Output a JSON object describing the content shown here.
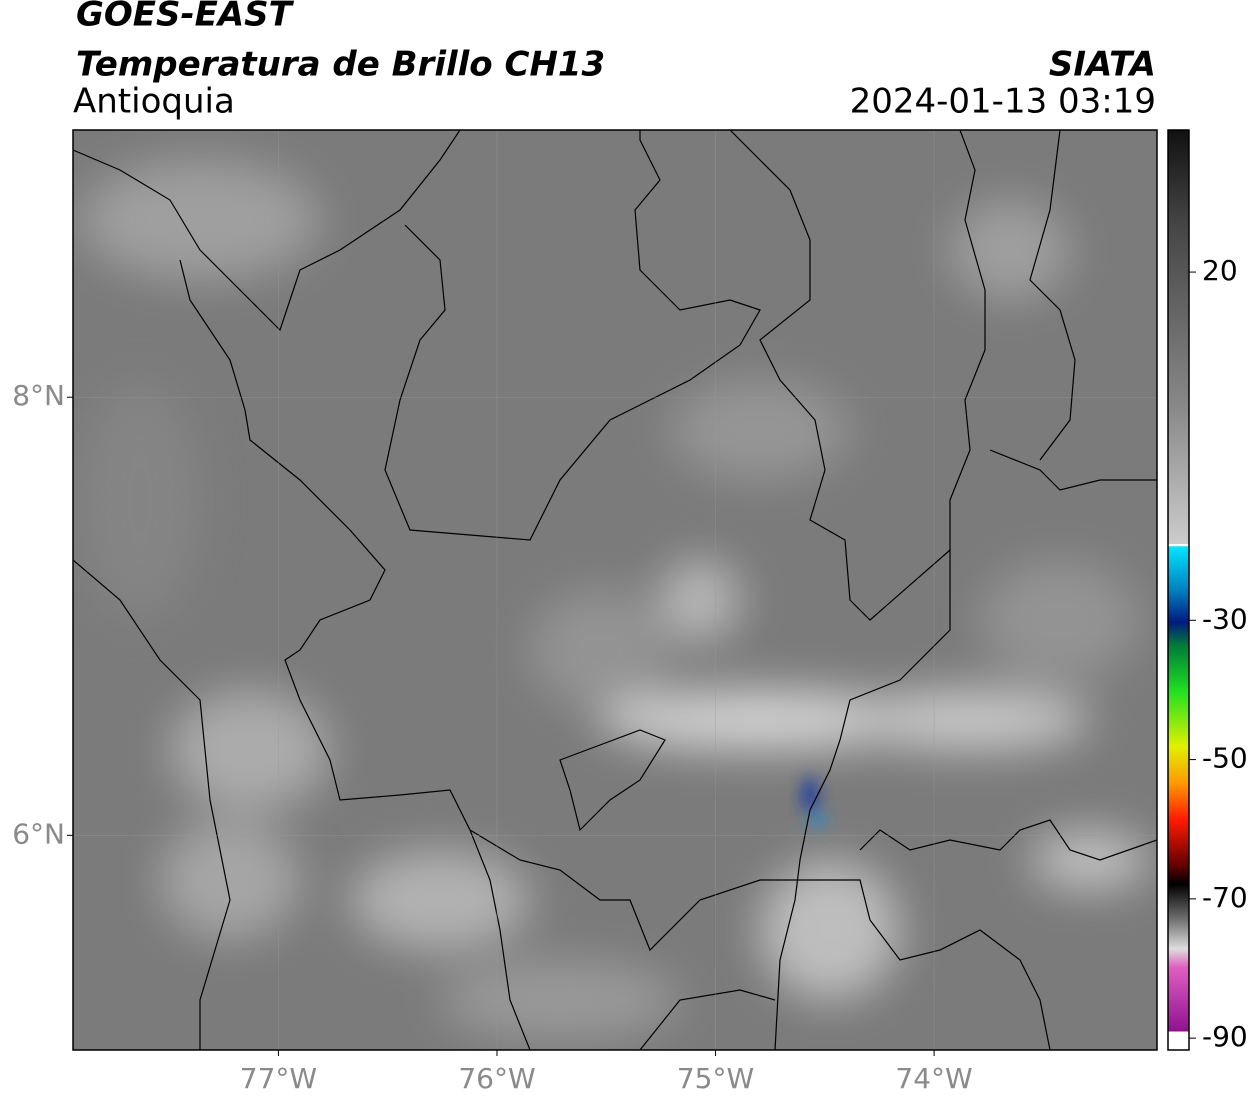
{
  "header": {
    "title": "GOES-EAST",
    "subtitle": "Temperatura de Brillo CH13",
    "region": "Antioquia",
    "source": "SIATA",
    "datetime": "2024-01-13 03:19"
  },
  "map": {
    "xlim": [
      -77.94,
      -72.98
    ],
    "ylim": [
      5.02,
      9.22
    ],
    "xticks": [
      {
        "value": -77,
        "label": "77°W"
      },
      {
        "value": -76,
        "label": "76°W"
      },
      {
        "value": -75,
        "label": "75°W"
      },
      {
        "value": -74,
        "label": "74°W"
      }
    ],
    "yticks": [
      {
        "value": 6,
        "label": "6°N"
      },
      {
        "value": 8,
        "label": "8°N"
      }
    ],
    "grid": true,
    "colorbar": {
      "lim": [
        -91.7,
        40.4
      ],
      "ticks": [
        20,
        -30,
        -50,
        -70,
        -90
      ]
    }
  }
}
